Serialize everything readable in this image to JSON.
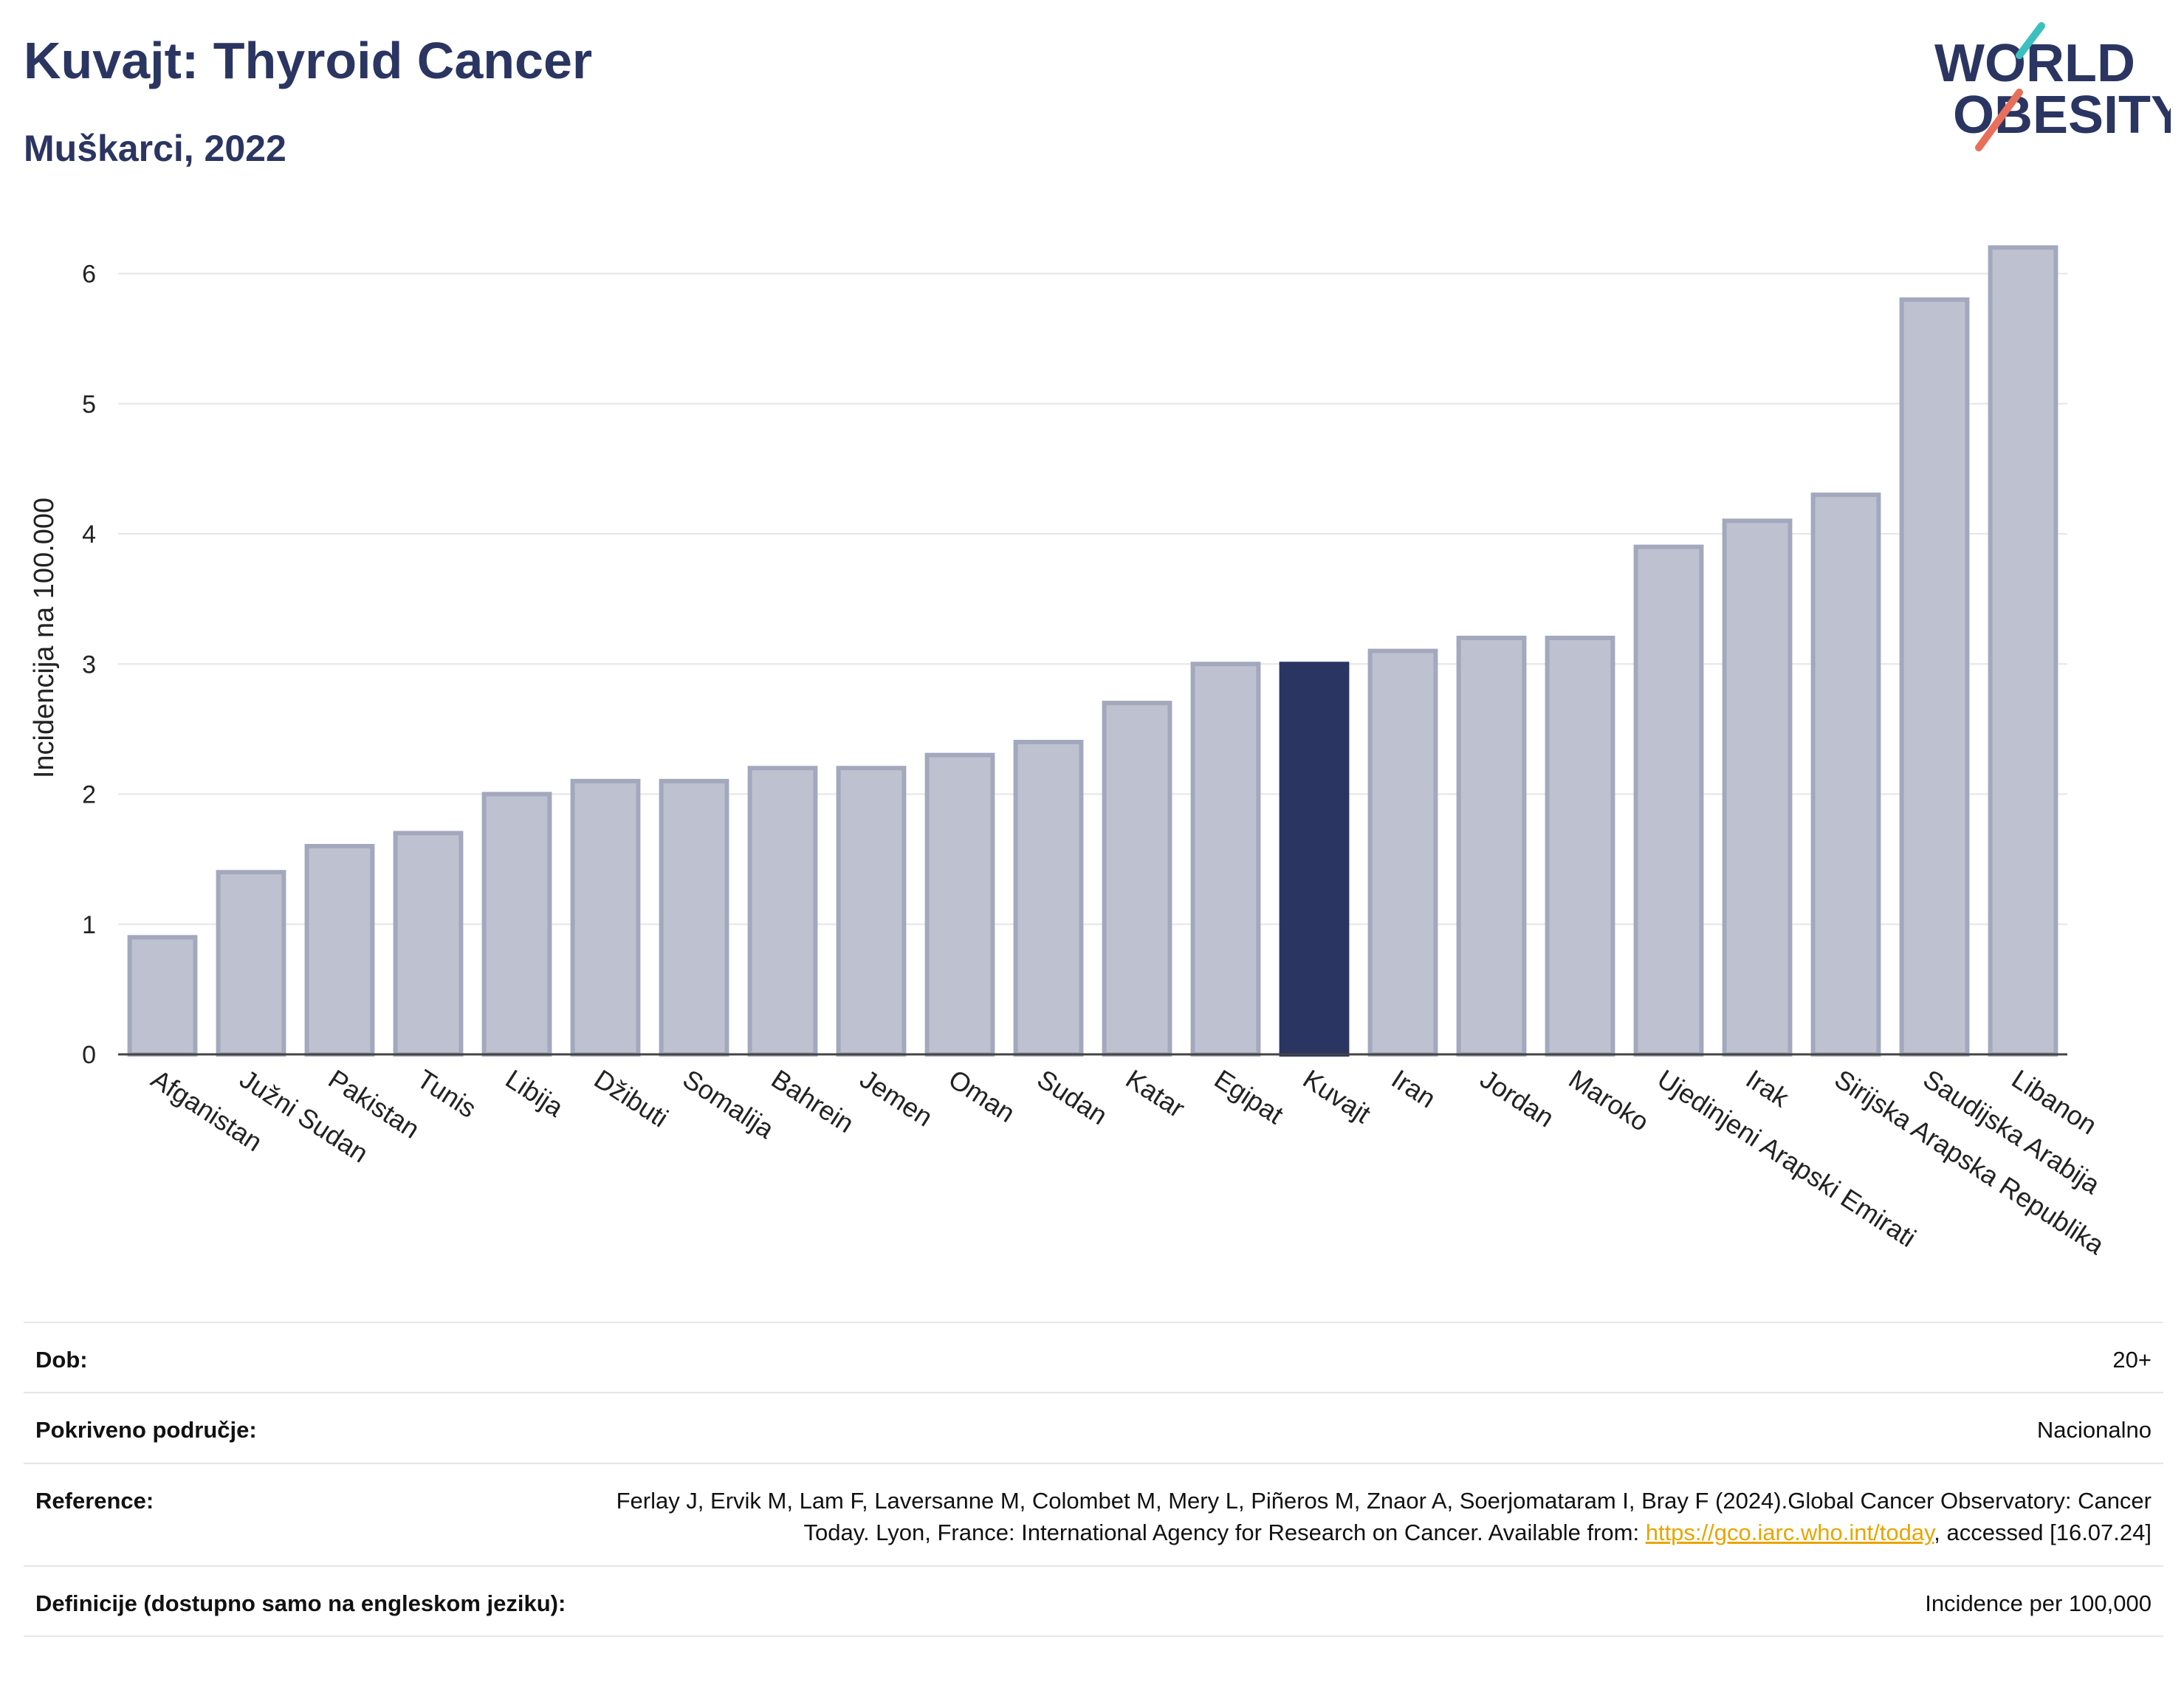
{
  "header": {
    "title": "Kuvajt: Thyroid Cancer",
    "subtitle": "Muškarci, 2022",
    "logo_line1": "WORLD",
    "logo_line2": "OBESITY"
  },
  "colors": {
    "bar": "#bec2d0",
    "bar_stroke": "#a3a8bd",
    "highlight": "#2b3562",
    "title": "#2b3562",
    "grid": "#e6e6e6",
    "logo_teal": "#3cbfbf",
    "logo_red": "#e8705a"
  },
  "chart_data": {
    "type": "bar",
    "ylabel": "Incidencija na 100.000",
    "ylim": [
      0,
      6.4
    ],
    "yticks": [
      0,
      1,
      2,
      3,
      4,
      5,
      6
    ],
    "grid": true,
    "highlight": "Kuvajt",
    "categories": [
      "Afganistan",
      "Južni Sudan",
      "Pakistan",
      "Tunis",
      "Libija",
      "Džibuti",
      "Somalija",
      "Bahrein",
      "Jemen",
      "Oman",
      "Sudan",
      "Katar",
      "Egipat",
      "Kuvajt",
      "Iran",
      "Jordan",
      "Maroko",
      "Ujedinjeni Arapski Emirati",
      "Irak",
      "Sirijska Arapska Republika",
      "Saudijska Arabija",
      "Libanon"
    ],
    "values": [
      0.9,
      1.4,
      1.6,
      1.7,
      2.0,
      2.1,
      2.1,
      2.2,
      2.2,
      2.3,
      2.4,
      2.7,
      3.0,
      3.0,
      3.1,
      3.2,
      3.2,
      3.9,
      4.1,
      4.3,
      5.8,
      6.2
    ]
  },
  "meta": {
    "age_label": "Dob:",
    "age_value": "20+",
    "coverage_label": "Pokriveno područje:",
    "coverage_value": "Nacionalno",
    "reference_label": "Reference:",
    "reference_text_1": "Ferlay J, Ervik M, Lam F, Laversanne M, Colombet M, Mery L, Piñeros M, Znaor A, Soerjomataram I, Bray F (2024).Global Cancer Observatory: Cancer Today. Lyon, France: International Agency for Research on Cancer. Available from: ",
    "reference_link": "https://gco.iarc.who.int/today",
    "reference_text_2": ", accessed [16.07.24]",
    "definitions_label": "Definicije (dostupno samo na engleskom jeziku):",
    "definitions_value": "Incidence per 100,000"
  }
}
